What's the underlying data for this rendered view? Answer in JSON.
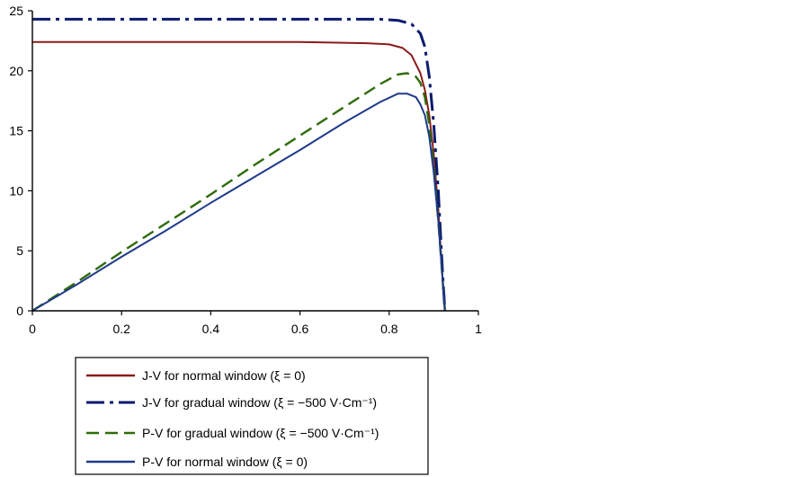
{
  "chart_data": {
    "type": "line",
    "xlim": [
      0,
      1
    ],
    "ylim": [
      0,
      25
    ],
    "xticks": [
      0,
      0.2,
      0.4,
      0.6,
      0.8,
      1
    ],
    "xtick_labels": [
      "0",
      "0.2",
      "0.4",
      "0.6",
      "0.8",
      "1"
    ],
    "yticks": [
      0,
      5,
      10,
      15,
      20,
      25
    ],
    "ytick_labels": [
      "0",
      "5",
      "10",
      "15",
      "20",
      "25"
    ],
    "grid": false,
    "legend_position": "bottom",
    "series": [
      {
        "name": "J-V for normal window (ξ = 0)",
        "color": "#8b1a1a",
        "dash": "solid",
        "x": [
          0,
          0.2,
          0.4,
          0.6,
          0.75,
          0.8,
          0.83,
          0.85,
          0.87,
          0.88,
          0.89,
          0.9,
          0.91,
          0.915,
          0.92,
          0.925
        ],
        "y": [
          22.4,
          22.4,
          22.4,
          22.4,
          22.3,
          22.2,
          21.9,
          21.3,
          19.8,
          18.4,
          16.3,
          13.0,
          8.5,
          5.5,
          2.5,
          0
        ]
      },
      {
        "name": "J-V for gradual window (ξ = −500 V·Cm⁻¹)",
        "color": "#0a1a6e",
        "dash": "dashdot",
        "x": [
          0,
          0.2,
          0.4,
          0.6,
          0.78,
          0.82,
          0.85,
          0.87,
          0.88,
          0.89,
          0.9,
          0.91,
          0.915,
          0.92,
          0.925
        ],
        "y": [
          24.3,
          24.3,
          24.3,
          24.3,
          24.3,
          24.2,
          23.9,
          23.1,
          22.0,
          19.5,
          15.5,
          10.0,
          6.5,
          3.0,
          0
        ]
      },
      {
        "name": "P-V for gradual window (ξ = −500 V·Cm⁻¹)",
        "color": "#2e6b0a",
        "dash": "dash",
        "x": [
          0,
          0.1,
          0.2,
          0.3,
          0.4,
          0.5,
          0.6,
          0.7,
          0.78,
          0.82,
          0.84,
          0.86,
          0.87,
          0.88,
          0.89,
          0.9,
          0.91,
          0.92,
          0.925
        ],
        "y": [
          0,
          2.4,
          4.9,
          7.3,
          9.7,
          12.2,
          14.6,
          17.0,
          18.9,
          19.7,
          19.8,
          19.5,
          19.0,
          17.8,
          15.5,
          12.0,
          7.5,
          2.5,
          0
        ]
      },
      {
        "name": "P-V for normal window (ξ = 0)",
        "color": "#1e3a8a",
        "dash": "solid",
        "x": [
          0,
          0.1,
          0.2,
          0.3,
          0.4,
          0.5,
          0.6,
          0.7,
          0.78,
          0.82,
          0.84,
          0.86,
          0.87,
          0.88,
          0.89,
          0.9,
          0.91,
          0.92,
          0.925
        ],
        "y": [
          0,
          2.2,
          4.5,
          6.7,
          9.0,
          11.2,
          13.4,
          15.7,
          17.4,
          18.1,
          18.1,
          17.8,
          17.2,
          16.3,
          14.5,
          11.5,
          7.5,
          2.5,
          0
        ]
      }
    ]
  }
}
